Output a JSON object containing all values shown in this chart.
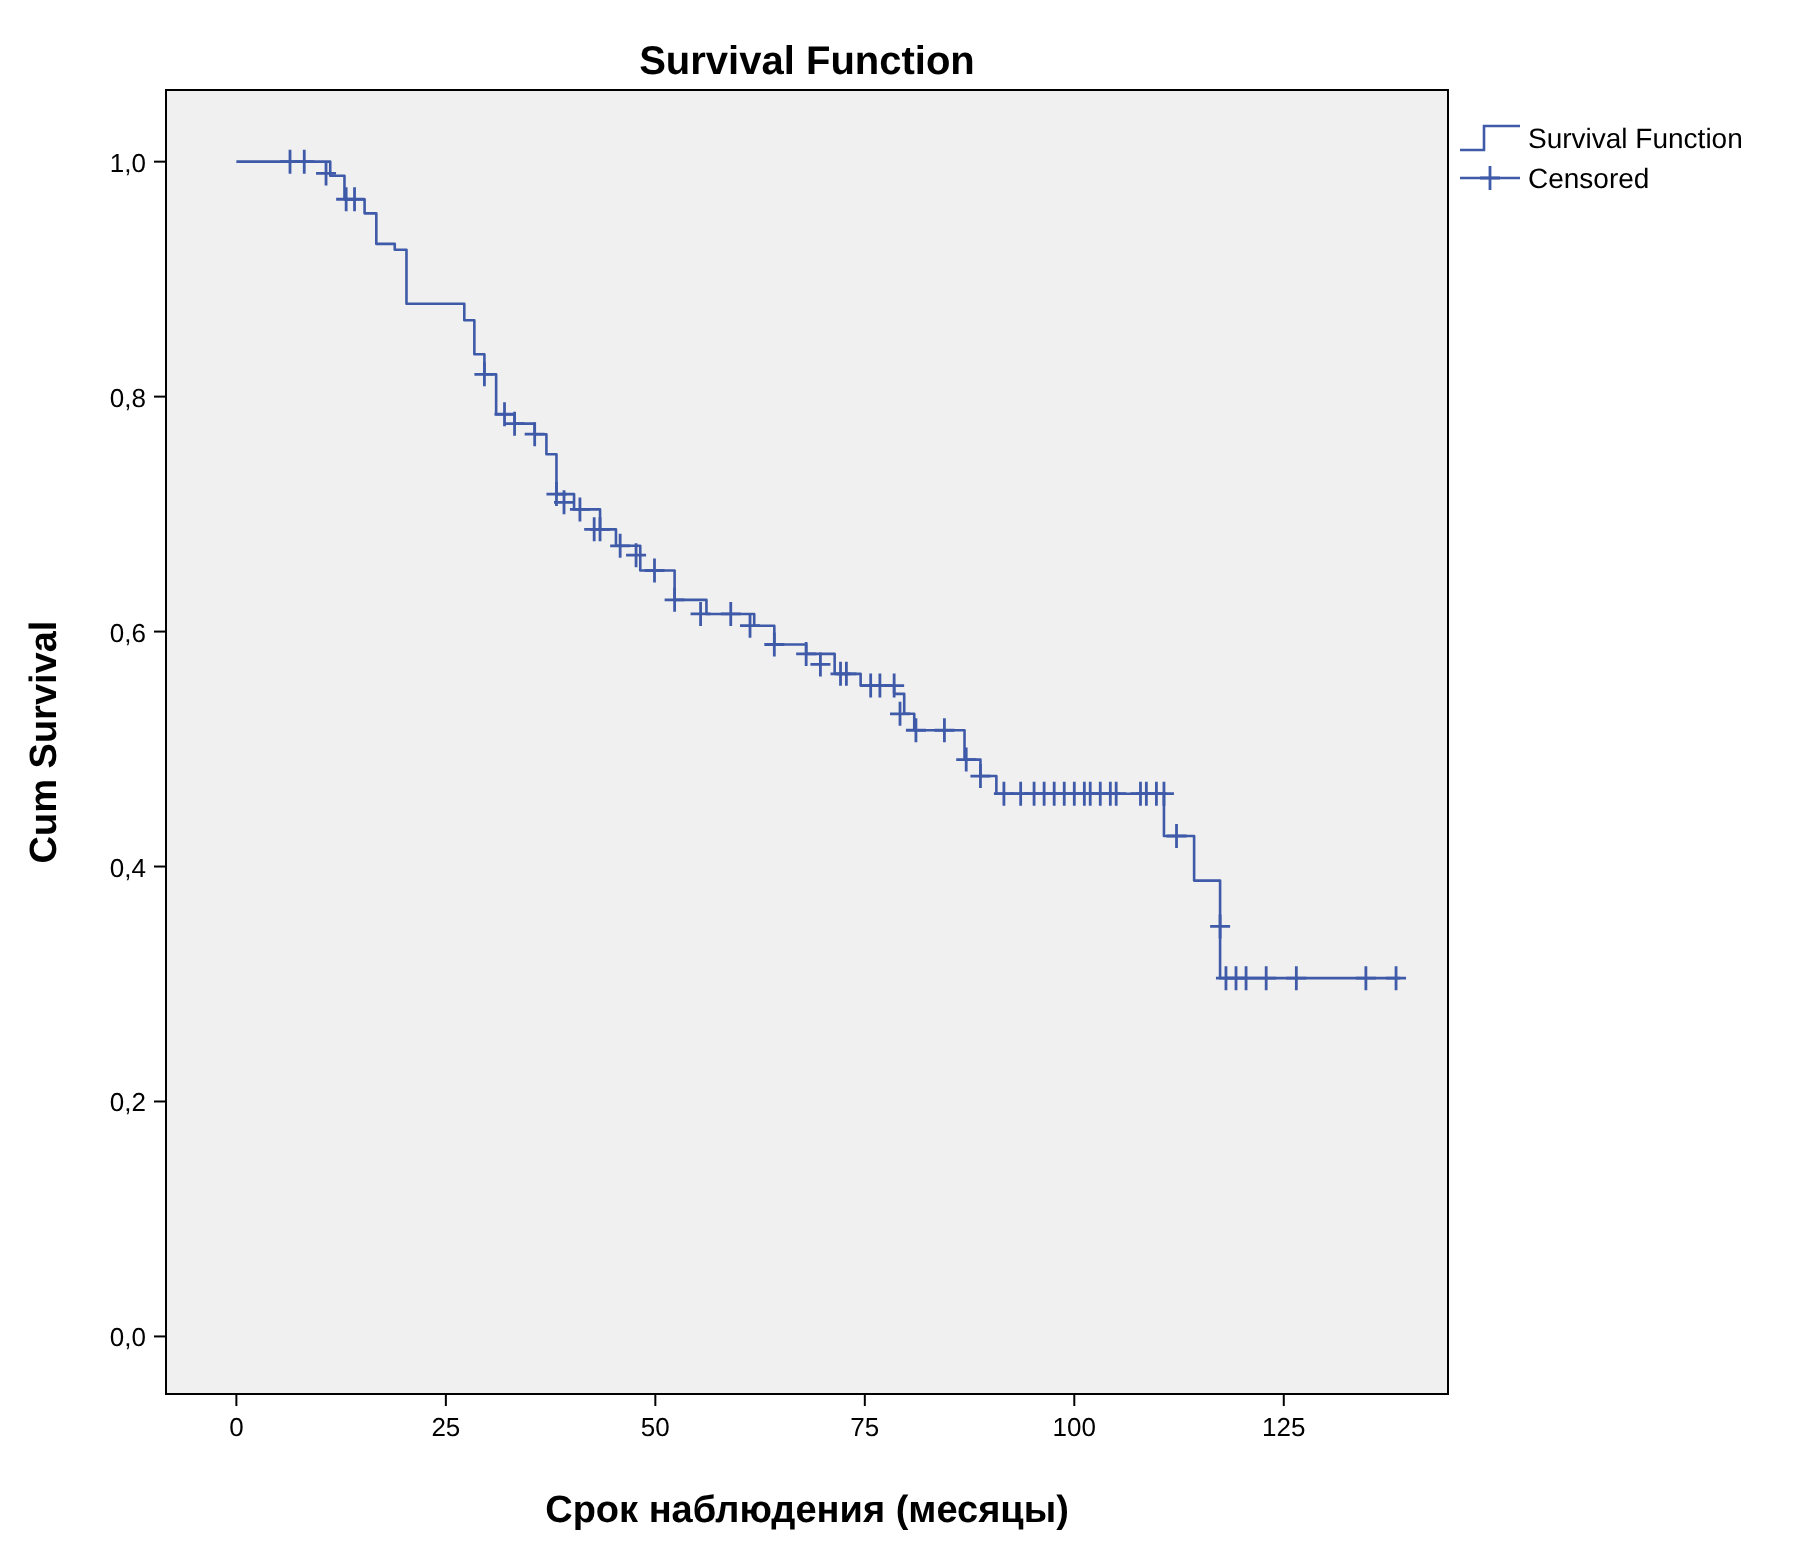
{
  "chart_data": {
    "type": "step",
    "title": "Survival Function",
    "xlabel": "Срок наблюдения (месяцы)",
    "ylabel": "Cum Survival",
    "xlim": [
      -8.4,
      144.6
    ],
    "ylim": [
      -0.049,
      1.061
    ],
    "xticks": [
      0,
      25,
      50,
      75,
      100,
      125
    ],
    "yticks": [
      {
        "value": 0,
        "label": "0,0"
      },
      {
        "value": 0.2,
        "label": "0,2"
      },
      {
        "value": 0.4,
        "label": "0,4"
      },
      {
        "value": 0.6,
        "label": "0,6"
      },
      {
        "value": 0.8,
        "label": "0,8"
      },
      {
        "value": 1,
        "label": "1,0"
      }
    ],
    "grid": false,
    "legend": "top right",
    "series": [
      {
        "name": "Survival Function",
        "color": "#3f5aa8",
        "marker": "none",
        "x": [
          0,
          11.2,
          12.9,
          15.3,
          16.7,
          18.9,
          20.3,
          27.2,
          28.4,
          29.6,
          31.0,
          33.2,
          35.6,
          37.0,
          38.2,
          40.3,
          43.4,
          45.3,
          48.2,
          52.3,
          56.1,
          61.8,
          64.2,
          68.0,
          71.4,
          74.5,
          78.5,
          79.7,
          80.9,
          86.9,
          88.8,
          90.7,
          110.7,
          114.3,
          117.4,
          138.9
        ],
        "values": [
          1.0,
          0.988,
          0.968,
          0.956,
          0.93,
          0.925,
          0.879,
          0.865,
          0.836,
          0.819,
          0.785,
          0.777,
          0.768,
          0.751,
          0.717,
          0.704,
          0.687,
          0.673,
          0.652,
          0.627,
          0.615,
          0.605,
          0.589,
          0.581,
          0.564,
          0.554,
          0.547,
          0.53,
          0.516,
          0.491,
          0.477,
          0.462,
          0.426,
          0.388,
          0.305,
          0.305
        ]
      },
      {
        "name": "Censored",
        "type": "scatter",
        "color": "#3f5aa8",
        "marker": "cross",
        "x": [
          6.4,
          8.1,
          10.7,
          13.1,
          14.1,
          29.6,
          32.0,
          33.2,
          35.6,
          38.2,
          39.1,
          41.0,
          42.7,
          43.4,
          45.8,
          47.7,
          49.9,
          52.3,
          55.4,
          59.0,
          61.3,
          64.2,
          68.0,
          69.7,
          72.1,
          72.8,
          75.7,
          76.8,
          78.5,
          79.2,
          81.1,
          84.5,
          87.1,
          88.8,
          91.6,
          93.6,
          95.2,
          96.4,
          97.6,
          98.8,
          100.0,
          101.2,
          101.9,
          103.1,
          104.3,
          105.0,
          107.9,
          108.6,
          109.8,
          110.7,
          112.2,
          117.4,
          118.1,
          119.3,
          120.5,
          122.9,
          126.5,
          134.8,
          138.4
        ],
        "values": [
          1.0,
          1.0,
          0.99,
          0.968,
          0.968,
          0.819,
          0.785,
          0.777,
          0.768,
          0.717,
          0.71,
          0.704,
          0.687,
          0.687,
          0.673,
          0.665,
          0.652,
          0.627,
          0.615,
          0.615,
          0.605,
          0.589,
          0.581,
          0.572,
          0.564,
          0.564,
          0.554,
          0.554,
          0.554,
          0.53,
          0.516,
          0.516,
          0.491,
          0.477,
          0.462,
          0.462,
          0.462,
          0.462,
          0.462,
          0.462,
          0.462,
          0.462,
          0.462,
          0.462,
          0.462,
          0.462,
          0.462,
          0.462,
          0.462,
          0.462,
          0.426,
          0.349,
          0.305,
          0.305,
          0.305,
          0.305,
          0.305,
          0.305,
          0.305
        ]
      }
    ]
  }
}
